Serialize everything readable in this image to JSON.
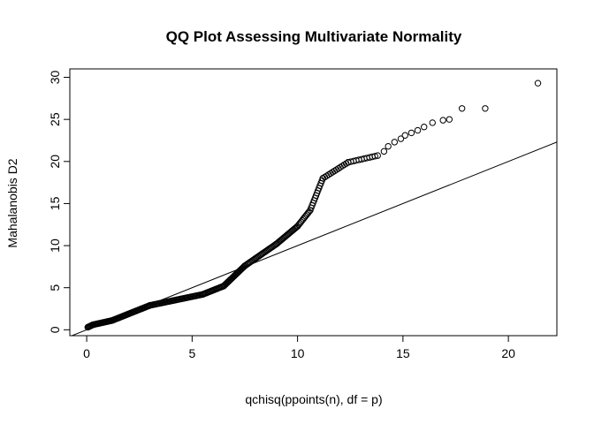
{
  "chart_data": {
    "type": "scatter",
    "title": "QQ Plot Assessing Multivariate Normality",
    "xlabel": "qchisq(ppoints(n), df = p)",
    "ylabel": "Mahalanobis D2",
    "xlim": [
      -0.8,
      22.3
    ],
    "ylim": [
      -0.7,
      31.0
    ],
    "x_ticks": [
      0,
      5,
      10,
      15,
      20
    ],
    "y_ticks": [
      0,
      5,
      10,
      15,
      20,
      25,
      30
    ],
    "grid": false,
    "legend": "none",
    "reference_line": {
      "intercept": 0,
      "slope": 1
    },
    "point_color": "#000000",
    "segments": [
      {
        "x0": 0.05,
        "x1": 0.3,
        "y0": 0.3,
        "y1": 0.6,
        "n": 8
      },
      {
        "x0": 0.3,
        "x1": 1.2,
        "y0": 0.6,
        "y1": 1.1,
        "n": 22
      },
      {
        "x0": 1.2,
        "x1": 3.0,
        "y0": 1.1,
        "y1": 2.9,
        "n": 40
      },
      {
        "x0": 3.0,
        "x1": 5.5,
        "y0": 2.9,
        "y1": 4.2,
        "n": 45
      },
      {
        "x0": 5.5,
        "x1": 6.5,
        "y0": 4.2,
        "y1": 5.2,
        "n": 22
      },
      {
        "x0": 6.5,
        "x1": 7.5,
        "y0": 5.2,
        "y1": 7.6,
        "n": 25
      },
      {
        "x0": 7.5,
        "x1": 9.0,
        "y0": 7.6,
        "y1": 10.2,
        "n": 30
      },
      {
        "x0": 9.0,
        "x1": 10.0,
        "y0": 10.2,
        "y1": 12.3,
        "n": 22
      },
      {
        "x0": 10.0,
        "x1": 10.6,
        "y0": 12.3,
        "y1": 14.2,
        "n": 12
      },
      {
        "x0": 10.6,
        "x1": 11.2,
        "y0": 14.2,
        "y1": 18.0,
        "n": 14
      },
      {
        "x0": 11.2,
        "x1": 12.4,
        "y0": 18.0,
        "y1": 19.9,
        "n": 14
      },
      {
        "x0": 12.4,
        "x1": 13.8,
        "y0": 19.9,
        "y1": 20.7,
        "n": 12
      }
    ],
    "tail_points": [
      [
        14.1,
        21.2
      ],
      [
        14.3,
        21.8
      ],
      [
        14.6,
        22.3
      ],
      [
        14.9,
        22.7
      ],
      [
        15.1,
        23.1
      ],
      [
        15.4,
        23.4
      ],
      [
        15.7,
        23.7
      ],
      [
        16.0,
        24.1
      ],
      [
        16.4,
        24.6
      ],
      [
        16.9,
        24.9
      ],
      [
        17.2,
        25.0
      ],
      [
        17.8,
        26.3
      ],
      [
        18.9,
        26.3
      ],
      [
        21.4,
        29.3
      ]
    ]
  }
}
